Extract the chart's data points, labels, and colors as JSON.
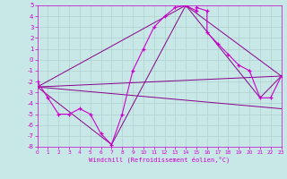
{
  "xlabel": "Windchill (Refroidissement éolien,°C)",
  "xlim": [
    0,
    23
  ],
  "ylim": [
    -8,
    5
  ],
  "xticks": [
    0,
    1,
    2,
    3,
    4,
    5,
    6,
    7,
    8,
    9,
    10,
    11,
    12,
    13,
    14,
    15,
    16,
    17,
    18,
    19,
    20,
    21,
    22,
    23
  ],
  "yticks": [
    -8,
    -7,
    -6,
    -5,
    -4,
    -3,
    -2,
    -1,
    0,
    1,
    2,
    3,
    4,
    5
  ],
  "background_color": "#c8e8e8",
  "grid_color": "#b0d0d0",
  "line_color": "#cc00cc",
  "line_color2": "#880088",
  "series1_x": [
    0,
    1,
    2,
    3,
    4,
    5,
    6,
    7,
    8,
    9,
    10,
    11,
    12,
    13,
    14,
    15,
    15,
    16,
    16,
    17,
    18,
    19,
    20,
    21,
    22,
    23
  ],
  "series1_y": [
    -2,
    -3.5,
    -5,
    -5,
    -4.5,
    -5,
    -6.8,
    -7.8,
    -5,
    -1,
    1,
    3,
    4,
    4.8,
    5,
    4.5,
    4.8,
    4.5,
    2.5,
    1.5,
    0.5,
    -0.5,
    -1,
    -3.5,
    -3.5,
    -1.5
  ],
  "line1_x": [
    0,
    23
  ],
  "line1_y": [
    -2.5,
    -1.5
  ],
  "line2_x": [
    0,
    23
  ],
  "line2_y": [
    -2.5,
    -4.5
  ],
  "line3_x": [
    0,
    14,
    23
  ],
  "line3_y": [
    -2.5,
    5,
    -1.5
  ],
  "line4_x": [
    0,
    7,
    14,
    21,
    23
  ],
  "line4_y": [
    -2.5,
    -7.8,
    5,
    -3.5,
    -1.5
  ]
}
